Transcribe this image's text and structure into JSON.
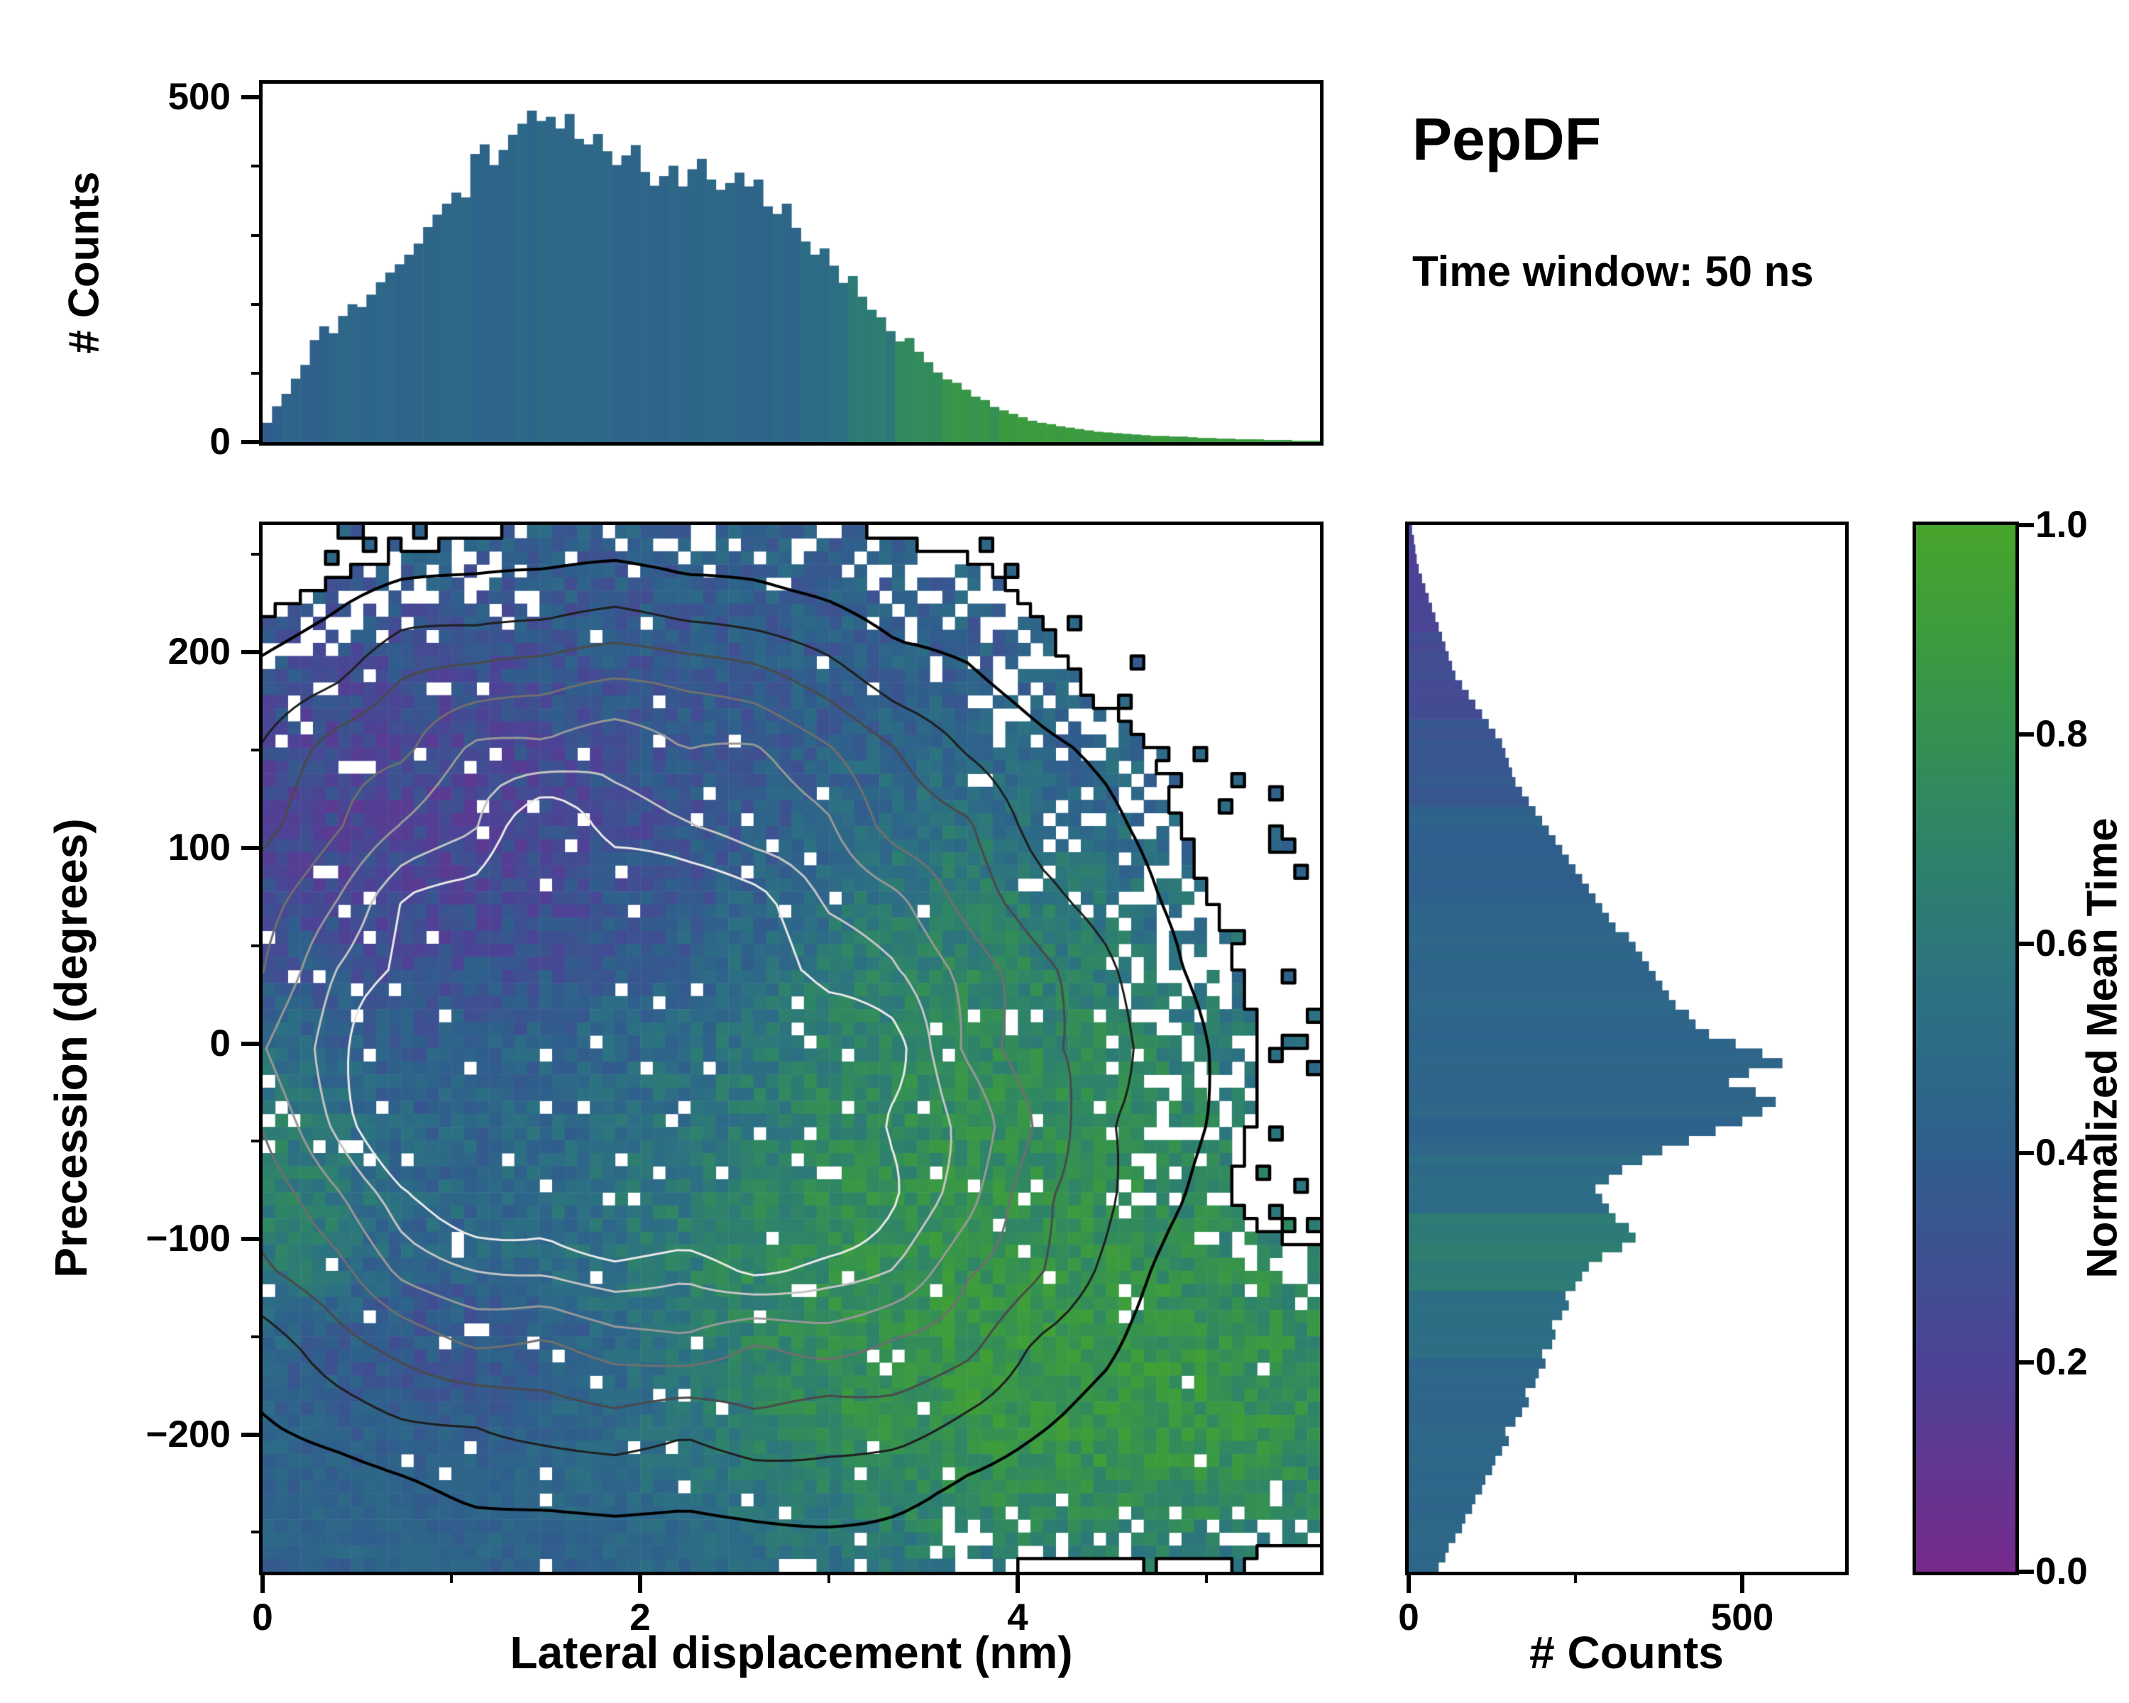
{
  "header": {
    "title": "PepDF",
    "subtitle": "Time window: 50 ns"
  },
  "colors": {
    "background": "#ffffff",
    "axis": "#000000",
    "colormap_stops": [
      [
        0.0,
        "#762a8c"
      ],
      [
        0.2,
        "#4c4396"
      ],
      [
        0.4,
        "#2f5f8c"
      ],
      [
        0.55,
        "#2c7183"
      ],
      [
        0.7,
        "#2e8468"
      ],
      [
        0.85,
        "#389747"
      ],
      [
        1.0,
        "#47a52b"
      ]
    ]
  },
  "chart_data": [
    {
      "id": "top_marginal_histogram",
      "type": "bar",
      "ylabel": "# Counts",
      "x_range": [
        0,
        5.6
      ],
      "y_range": [
        0,
        520
      ],
      "y_ticks": [
        "500",
        "0"
      ],
      "y_tick_values": [
        500,
        0
      ],
      "bin_width": 0.05,
      "values": [
        28,
        52,
        70,
        92,
        112,
        148,
        168,
        158,
        183,
        200,
        196,
        214,
        232,
        246,
        258,
        272,
        288,
        312,
        330,
        346,
        362,
        355,
        418,
        432,
        402,
        424,
        446,
        462,
        481,
        466,
        472,
        455,
        476,
        440,
        432,
        447,
        422,
        402,
        416,
        431,
        392,
        372,
        386,
        401,
        371,
        396,
        411,
        381,
        366,
        376,
        391,
        371,
        381,
        342,
        331,
        346,
        311,
        291,
        272,
        281,
        256,
        231,
        241,
        211,
        192,
        181,
        161,
        146,
        151,
        131,
        116,
        101,
        91,
        86,
        76,
        66,
        61,
        51,
        46,
        41,
        36,
        31,
        28,
        26,
        23,
        21,
        19,
        17,
        15,
        14,
        13,
        12,
        11,
        10,
        9,
        9,
        8,
        8,
        7,
        6,
        6,
        5,
        5,
        4,
        4,
        4,
        3,
        3,
        3,
        2,
        2,
        2
      ],
      "mean_time_segments": [
        {
          "from": 0,
          "to": 0.35,
          "t": 0.42
        },
        {
          "from": 0.35,
          "to": 2.85,
          "t": 0.46
        },
        {
          "from": 2.85,
          "to": 3.1,
          "t": 0.52
        },
        {
          "from": 3.1,
          "to": 3.35,
          "t": 0.62
        },
        {
          "from": 3.35,
          "to": 3.6,
          "t": 0.74
        },
        {
          "from": 3.6,
          "to": 3.9,
          "t": 0.82
        },
        {
          "from": 3.9,
          "to": 5.6,
          "t": 0.88
        }
      ]
    },
    {
      "id": "joint_heatmap",
      "type": "heatmap",
      "xlabel": "Lateral displacement (nm)",
      "ylabel": "Precession (degrees)",
      "x_range": [
        0,
        5.6
      ],
      "y_range": [
        -270,
        265
      ],
      "x_ticks": [
        "0",
        "2",
        "4"
      ],
      "x_tick_values": [
        0,
        2,
        4
      ],
      "y_ticks": [
        "200",
        "100",
        "0",
        "−100",
        "−200"
      ],
      "y_tick_values": [
        200,
        100,
        0,
        -100,
        -200
      ],
      "grid": {
        "nx": 84,
        "ny": 80
      },
      "seed": 42,
      "fill_threshold": 0.09,
      "density_gaussians": [
        {
          "cx": 1.6,
          "cy": -10,
          "sx": 1.15,
          "sy": 105,
          "w": 1.0,
          "contour": true
        },
        {
          "cx": 2.1,
          "cy": 10,
          "sx": 1.7,
          "sy": 110,
          "w": 0.4,
          "contour": true
        },
        {
          "cx": 1.7,
          "cy": 150,
          "sx": 1.1,
          "sy": 50,
          "w": 0.25,
          "contour": true
        },
        {
          "cx": 3.3,
          "cy": -70,
          "sx": 0.7,
          "sy": 95,
          "w": 0.4,
          "contour": true
        },
        {
          "cx": 1.0,
          "cy": -225,
          "sx": 0.95,
          "sy": 55,
          "w": 0.9,
          "contour": false
        },
        {
          "cx": 3.5,
          "cy": -175,
          "sx": 1.15,
          "sy": 34,
          "w": 0.65,
          "contour": false
        },
        {
          "cx": 4.9,
          "cy": -185,
          "sx": 0.75,
          "sy": 40,
          "w": 0.5,
          "contour": false
        },
        {
          "cx": 2.7,
          "cy": 195,
          "sx": 0.8,
          "sy": 45,
          "w": 0.18,
          "contour": false
        }
      ],
      "mean_time_blobs": [
        {
          "cx": 0.8,
          "cy": 115,
          "sx": 0.75,
          "sy": 55,
          "t": 0.14,
          "w": 3.5
        },
        {
          "cx": 0.35,
          "cy": 30,
          "sx": 0.5,
          "sy": 55,
          "t": 0.26,
          "w": 1.2
        },
        {
          "cx": 2.0,
          "cy": 95,
          "sx": 1.0,
          "sy": 45,
          "t": 0.3,
          "w": 0.7
        },
        {
          "cx": 2.2,
          "cy": 200,
          "sx": 1.3,
          "sy": 45,
          "t": 0.33,
          "w": 1.0
        },
        {
          "cx": 3.9,
          "cy": -90,
          "sx": 0.85,
          "sy": 80,
          "t": 0.92,
          "w": 2.5
        },
        {
          "cx": 4.3,
          "cy": -180,
          "sx": 1.3,
          "sy": 45,
          "t": 0.95,
          "w": 3.0
        },
        {
          "cx": 2.9,
          "cy": -135,
          "sx": 0.6,
          "sy": 45,
          "t": 0.85,
          "w": 1.6
        },
        {
          "cx": 3.6,
          "cy": 40,
          "sx": 0.5,
          "sy": 55,
          "t": 0.8,
          "w": 1.2
        },
        {
          "cx": 0.07,
          "cy": -60,
          "sx": 0.3,
          "sy": 55,
          "t": 0.82,
          "w": 2.0
        },
        {
          "cx": 0.9,
          "cy": -165,
          "sx": 0.55,
          "sy": 28,
          "t": 0.2,
          "w": 1.4
        },
        {
          "cx": 1.7,
          "cy": -158,
          "sx": 0.8,
          "sy": 24,
          "t": 0.27,
          "w": 1.0
        },
        {
          "cx": 1.05,
          "cy": -232,
          "sx": 1.25,
          "sy": 52,
          "t": 0.42,
          "w": 2.5
        },
        {
          "cx": 1.6,
          "cy": -40,
          "sx": 0.9,
          "sy": 70,
          "t": 0.52,
          "w": 0.8
        }
      ],
      "smooth_regions": [
        {
          "cx": 1.05,
          "cy": -235,
          "sx": 1.3,
          "sy": 50,
          "s": 0.8
        }
      ],
      "contour_levels": [
        {
          "level": 0.13,
          "color": "#000000",
          "width": 4
        },
        {
          "level": 0.24,
          "color": "#1f1f1f",
          "width": 3
        },
        {
          "level": 0.36,
          "color": "#4a4a4a",
          "width": 3
        },
        {
          "level": 0.5,
          "color": "#6f6f6f",
          "width": 3
        },
        {
          "level": 0.64,
          "color": "#979797",
          "width": 3
        },
        {
          "level": 0.78,
          "color": "#c4c4c4",
          "width": 3
        },
        {
          "level": 0.9,
          "color": "#e8e8e8",
          "width": 3
        }
      ]
    },
    {
      "id": "right_marginal_histogram",
      "type": "bar_horizontal",
      "xlabel": "# Counts",
      "x_range": [
        0,
        654
      ],
      "y_range": [
        -270,
        265
      ],
      "x_ticks": [
        "0",
        "500"
      ],
      "x_tick_values": [
        0,
        500
      ],
      "values": [
        45,
        55,
        60,
        70,
        80,
        85,
        95,
        100,
        110,
        115,
        125,
        130,
        140,
        150,
        145,
        160,
        170,
        180,
        175,
        190,
        195,
        205,
        200,
        215,
        220,
        215,
        230,
        240,
        235,
        250,
        260,
        270,
        290,
        320,
        340,
        330,
        310,
        300,
        290,
        280,
        300,
        320,
        350,
        380,
        420,
        460,
        500,
        530,
        550,
        520,
        480,
        510,
        560,
        530,
        490,
        450,
        430,
        420,
        400,
        390,
        380,
        370,
        360,
        350,
        340,
        330,
        310,
        300,
        290,
        280,
        270,
        260,
        250,
        240,
        230,
        220,
        210,
        200,
        190,
        180,
        170,
        160,
        155,
        150,
        145,
        140,
        130,
        120,
        110,
        100,
        90,
        80,
        70,
        65,
        60,
        55,
        50,
        45,
        40,
        35,
        30,
        25,
        20,
        15,
        12,
        10,
        8,
        5
      ],
      "mean_time_segments": [
        {
          "from": -270,
          "to": -160,
          "t": 0.46
        },
        {
          "from": -160,
          "to": -125,
          "t": 0.52
        },
        {
          "from": -125,
          "to": -85,
          "t": 0.63
        },
        {
          "from": -85,
          "to": -55,
          "t": 0.5
        },
        {
          "from": -55,
          "to": 70,
          "t": 0.45
        },
        {
          "from": 70,
          "to": 120,
          "t": 0.41
        },
        {
          "from": 120,
          "to": 165,
          "t": 0.34
        },
        {
          "from": 165,
          "to": 210,
          "t": 0.27
        },
        {
          "from": 210,
          "to": 265,
          "t": 0.2
        }
      ]
    },
    {
      "id": "colorbar",
      "type": "colorbar",
      "label": "Normalized Mean Time",
      "range": [
        0.0,
        1.0
      ],
      "ticks": [
        "1.0",
        "0.8",
        "0.6",
        "0.4",
        "0.2",
        "0.0"
      ]
    }
  ]
}
